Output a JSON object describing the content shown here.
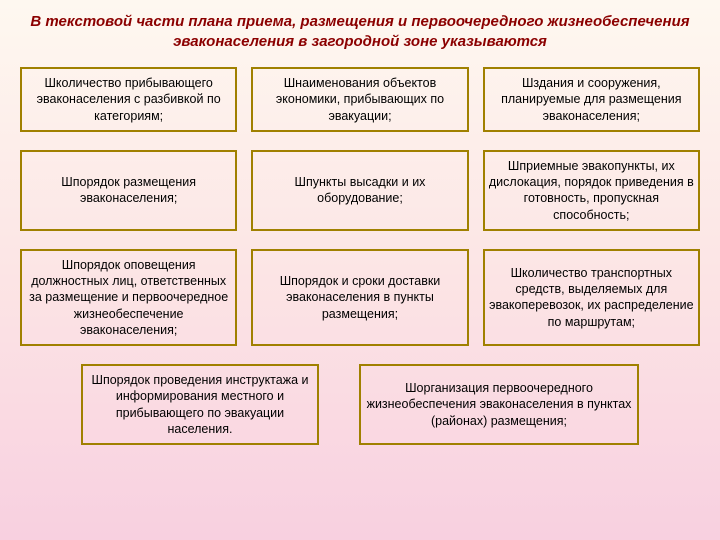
{
  "title": "В текстовой части плана приема, размещения и первоочередного жизнеобеспечения эваконаселения в загородной зоне указываются",
  "boxes": {
    "r1c1": "Школичество прибывающего эваконаселения с разбивкой по категориям;",
    "r1c2": "Шнаименования объектов экономики, прибывающих по эвакуации;",
    "r1c3": "Шздания и сооружения, планируемые для размещения эваконаселения;",
    "r2c1": "Шпорядок размещения эваконаселения;",
    "r2c2": "Шпункты высадки и их оборудование;",
    "r2c3": "Шприемные эвакопункты, их дислокация, порядок приведения в готовность, пропускная способность;",
    "r3c1": "Шпорядок оповещения должностных лиц, ответственных за размещение и первоочередное жизнеобеспечение эваконаселения;",
    "r3c2": "Шпорядок и сроки доставки эваконаселения в пункты размещения;",
    "r3c3": "Школичество транспортных средств, выделяемых для эвакоперевозок, их распределение по маршрутам;",
    "r4c1": "Шпорядок проведения инструктажа и информирования местного и прибывающего по эвакуации населения.",
    "r4c2": "Шорганизация первоочередного жизнеобеспечения эваконаселения в пунктах (районах) размещения;"
  },
  "style": {
    "box_border": "#a08000",
    "title_color": "#8b0000",
    "bg_top": "#fef8f0",
    "bg_mid": "#fce5e5",
    "bg_bot": "#f8d0e0",
    "title_fontsize": 15,
    "box_fontsize": 12.5
  }
}
